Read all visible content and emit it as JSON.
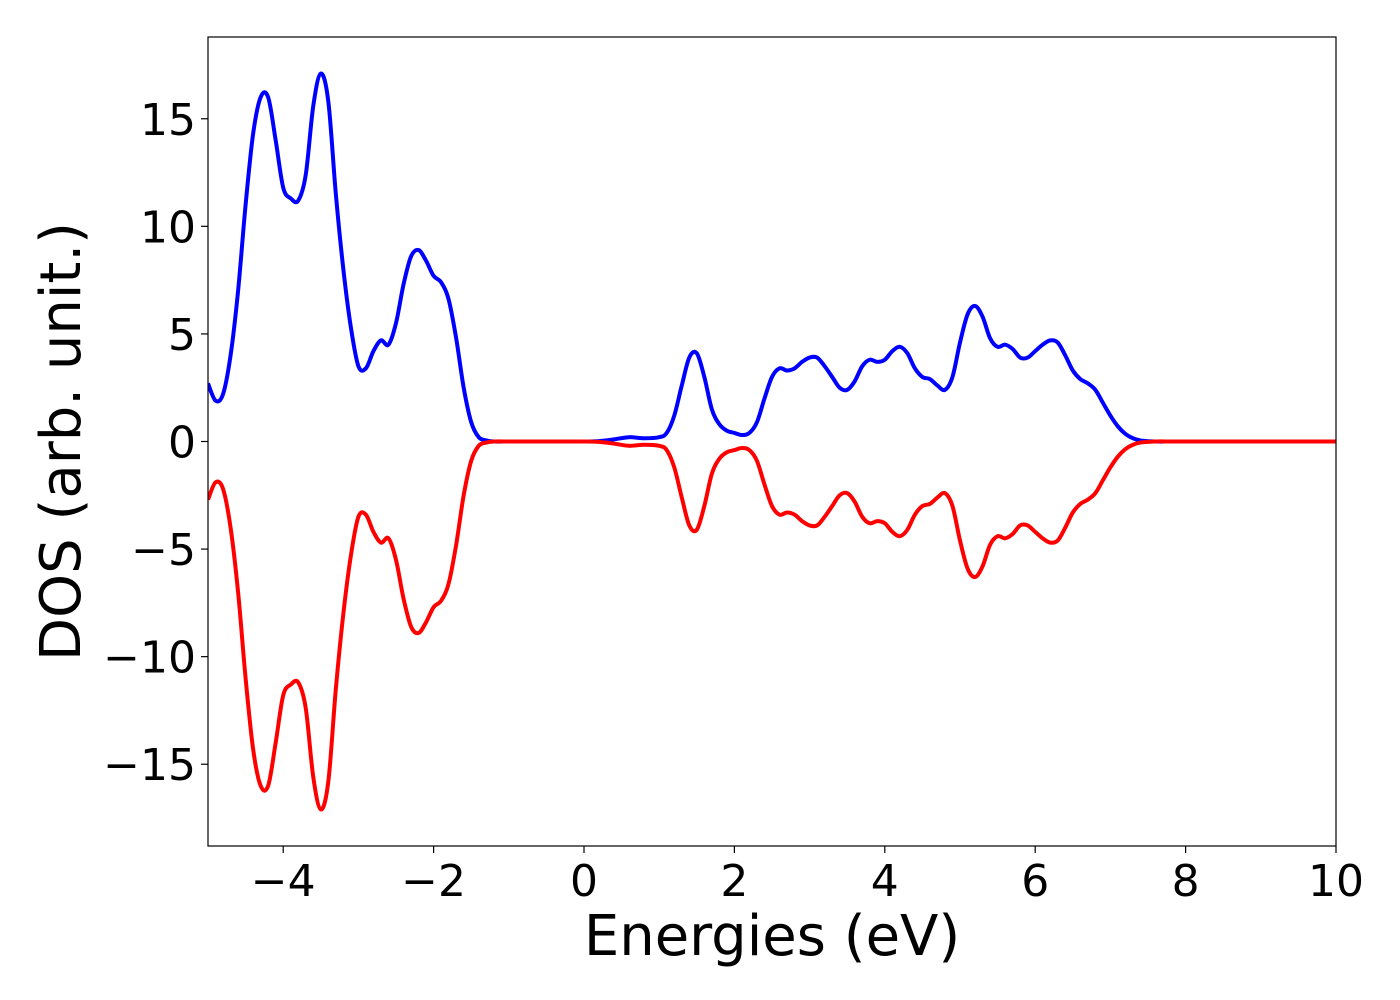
{
  "chart_data": {
    "type": "line",
    "title": "",
    "xlabel": "Energies (eV)",
    "ylabel": "DOS (arb. unit.)",
    "xlim": [
      -5,
      10
    ],
    "ylim": [
      -18.8,
      18.8
    ],
    "xticks": [
      -4,
      -2,
      0,
      2,
      4,
      6,
      8,
      10
    ],
    "xtick_labels": [
      "−4",
      "−2",
      "0",
      "2",
      "4",
      "6",
      "8",
      "10"
    ],
    "yticks": [
      15,
      10,
      5,
      0,
      -5,
      -10,
      -15
    ],
    "ytick_labels": [
      "15",
      "10",
      "5",
      "0",
      "−5",
      "−10",
      "−15"
    ],
    "grid": false,
    "legend": "none",
    "series": [
      {
        "color": "#0000ff",
        "points": [
          [
            -5.0,
            2.7
          ],
          [
            -4.9,
            1.9
          ],
          [
            -4.8,
            2.2
          ],
          [
            -4.7,
            4.0
          ],
          [
            -4.6,
            7.0
          ],
          [
            -4.5,
            11.0
          ],
          [
            -4.4,
            14.3
          ],
          [
            -4.3,
            16.0
          ],
          [
            -4.2,
            16.0
          ],
          [
            -4.1,
            14.0
          ],
          [
            -4.0,
            11.8
          ],
          [
            -3.9,
            11.3
          ],
          [
            -3.8,
            11.2
          ],
          [
            -3.7,
            12.4
          ],
          [
            -3.6,
            15.6
          ],
          [
            -3.5,
            17.1
          ],
          [
            -3.4,
            15.8
          ],
          [
            -3.3,
            11.5
          ],
          [
            -3.2,
            8.0
          ],
          [
            -3.1,
            5.3
          ],
          [
            -3.0,
            3.5
          ],
          [
            -2.9,
            3.4
          ],
          [
            -2.8,
            4.2
          ],
          [
            -2.7,
            4.7
          ],
          [
            -2.6,
            4.5
          ],
          [
            -2.5,
            5.5
          ],
          [
            -2.4,
            7.3
          ],
          [
            -2.3,
            8.6
          ],
          [
            -2.2,
            8.9
          ],
          [
            -2.1,
            8.4
          ],
          [
            -2.0,
            7.7
          ],
          [
            -1.9,
            7.4
          ],
          [
            -1.8,
            6.6
          ],
          [
            -1.7,
            4.8
          ],
          [
            -1.6,
            2.5
          ],
          [
            -1.5,
            0.9
          ],
          [
            -1.4,
            0.2
          ],
          [
            -1.3,
            0.05
          ],
          [
            -1.2,
            0.0
          ],
          [
            -1.0,
            0.0
          ],
          [
            -0.8,
            0.0
          ],
          [
            -0.6,
            0.0
          ],
          [
            -0.4,
            0.0
          ],
          [
            -0.2,
            0.0
          ],
          [
            0.0,
            0.0
          ],
          [
            0.2,
            0.02
          ],
          [
            0.4,
            0.1
          ],
          [
            0.6,
            0.2
          ],
          [
            0.8,
            0.15
          ],
          [
            1.0,
            0.2
          ],
          [
            1.1,
            0.4
          ],
          [
            1.2,
            1.2
          ],
          [
            1.3,
            2.6
          ],
          [
            1.4,
            3.9
          ],
          [
            1.5,
            4.1
          ],
          [
            1.6,
            3.0
          ],
          [
            1.7,
            1.5
          ],
          [
            1.8,
            0.8
          ],
          [
            1.9,
            0.5
          ],
          [
            2.0,
            0.4
          ],
          [
            2.1,
            0.3
          ],
          [
            2.2,
            0.4
          ],
          [
            2.3,
            0.9
          ],
          [
            2.4,
            2.0
          ],
          [
            2.5,
            3.0
          ],
          [
            2.6,
            3.4
          ],
          [
            2.7,
            3.3
          ],
          [
            2.8,
            3.4
          ],
          [
            2.9,
            3.7
          ],
          [
            3.0,
            3.9
          ],
          [
            3.1,
            3.9
          ],
          [
            3.2,
            3.5
          ],
          [
            3.3,
            3.0
          ],
          [
            3.4,
            2.5
          ],
          [
            3.5,
            2.4
          ],
          [
            3.6,
            2.8
          ],
          [
            3.7,
            3.5
          ],
          [
            3.8,
            3.8
          ],
          [
            3.9,
            3.7
          ],
          [
            4.0,
            3.8
          ],
          [
            4.1,
            4.2
          ],
          [
            4.2,
            4.4
          ],
          [
            4.3,
            4.1
          ],
          [
            4.4,
            3.4
          ],
          [
            4.5,
            3.0
          ],
          [
            4.6,
            2.9
          ],
          [
            4.7,
            2.6
          ],
          [
            4.8,
            2.4
          ],
          [
            4.9,
            3.0
          ],
          [
            5.0,
            4.6
          ],
          [
            5.1,
            5.9
          ],
          [
            5.2,
            6.3
          ],
          [
            5.3,
            5.8
          ],
          [
            5.4,
            4.8
          ],
          [
            5.5,
            4.4
          ],
          [
            5.6,
            4.5
          ],
          [
            5.7,
            4.3
          ],
          [
            5.8,
            3.9
          ],
          [
            5.9,
            3.9
          ],
          [
            6.0,
            4.2
          ],
          [
            6.1,
            4.5
          ],
          [
            6.2,
            4.7
          ],
          [
            6.3,
            4.6
          ],
          [
            6.4,
            4.0
          ],
          [
            6.5,
            3.3
          ],
          [
            6.6,
            2.9
          ],
          [
            6.7,
            2.7
          ],
          [
            6.8,
            2.4
          ],
          [
            6.9,
            1.8
          ],
          [
            7.0,
            1.2
          ],
          [
            7.1,
            0.7
          ],
          [
            7.2,
            0.35
          ],
          [
            7.3,
            0.15
          ],
          [
            7.4,
            0.05
          ],
          [
            7.6,
            0.0
          ],
          [
            7.8,
            0.0
          ],
          [
            8.0,
            0.0
          ],
          [
            8.5,
            0.0
          ],
          [
            9.0,
            0.0
          ],
          [
            9.5,
            0.0
          ],
          [
            10.0,
            0.0
          ]
        ]
      },
      {
        "color": "#ff0000",
        "points": [
          [
            -5.0,
            -2.7
          ],
          [
            -4.9,
            -1.9
          ],
          [
            -4.8,
            -2.2
          ],
          [
            -4.7,
            -4.0
          ],
          [
            -4.6,
            -7.0
          ],
          [
            -4.5,
            -11.0
          ],
          [
            -4.4,
            -14.3
          ],
          [
            -4.3,
            -16.0
          ],
          [
            -4.2,
            -16.0
          ],
          [
            -4.1,
            -14.0
          ],
          [
            -4.0,
            -11.8
          ],
          [
            -3.9,
            -11.3
          ],
          [
            -3.8,
            -11.2
          ],
          [
            -3.7,
            -12.4
          ],
          [
            -3.6,
            -15.6
          ],
          [
            -3.5,
            -17.1
          ],
          [
            -3.4,
            -15.8
          ],
          [
            -3.3,
            -11.5
          ],
          [
            -3.2,
            -8.0
          ],
          [
            -3.1,
            -5.3
          ],
          [
            -3.0,
            -3.5
          ],
          [
            -2.9,
            -3.4
          ],
          [
            -2.8,
            -4.2
          ],
          [
            -2.7,
            -4.7
          ],
          [
            -2.6,
            -4.5
          ],
          [
            -2.5,
            -5.5
          ],
          [
            -2.4,
            -7.3
          ],
          [
            -2.3,
            -8.6
          ],
          [
            -2.2,
            -8.9
          ],
          [
            -2.1,
            -8.4
          ],
          [
            -2.0,
            -7.7
          ],
          [
            -1.9,
            -7.4
          ],
          [
            -1.8,
            -6.6
          ],
          [
            -1.7,
            -4.8
          ],
          [
            -1.6,
            -2.5
          ],
          [
            -1.5,
            -0.9
          ],
          [
            -1.4,
            -0.2
          ],
          [
            -1.3,
            -0.05
          ],
          [
            -1.2,
            0.0
          ],
          [
            -1.0,
            0.0
          ],
          [
            -0.8,
            0.0
          ],
          [
            -0.6,
            0.0
          ],
          [
            -0.4,
            0.0
          ],
          [
            -0.2,
            0.0
          ],
          [
            0.0,
            0.0
          ],
          [
            0.2,
            -0.02
          ],
          [
            0.4,
            -0.1
          ],
          [
            0.6,
            -0.2
          ],
          [
            0.8,
            -0.15
          ],
          [
            1.0,
            -0.2
          ],
          [
            1.1,
            -0.4
          ],
          [
            1.2,
            -1.2
          ],
          [
            1.3,
            -2.6
          ],
          [
            1.4,
            -3.9
          ],
          [
            1.5,
            -4.1
          ],
          [
            1.6,
            -3.0
          ],
          [
            1.7,
            -1.5
          ],
          [
            1.8,
            -0.8
          ],
          [
            1.9,
            -0.5
          ],
          [
            2.0,
            -0.4
          ],
          [
            2.1,
            -0.3
          ],
          [
            2.2,
            -0.4
          ],
          [
            2.3,
            -0.9
          ],
          [
            2.4,
            -2.0
          ],
          [
            2.5,
            -3.0
          ],
          [
            2.6,
            -3.4
          ],
          [
            2.7,
            -3.3
          ],
          [
            2.8,
            -3.4
          ],
          [
            2.9,
            -3.7
          ],
          [
            3.0,
            -3.9
          ],
          [
            3.1,
            -3.9
          ],
          [
            3.2,
            -3.5
          ],
          [
            3.3,
            -3.0
          ],
          [
            3.4,
            -2.5
          ],
          [
            3.5,
            -2.4
          ],
          [
            3.6,
            -2.8
          ],
          [
            3.7,
            -3.5
          ],
          [
            3.8,
            -3.8
          ],
          [
            3.9,
            -3.7
          ],
          [
            4.0,
            -3.8
          ],
          [
            4.1,
            -4.2
          ],
          [
            4.2,
            -4.4
          ],
          [
            4.3,
            -4.1
          ],
          [
            4.4,
            -3.4
          ],
          [
            4.5,
            -3.0
          ],
          [
            4.6,
            -2.9
          ],
          [
            4.7,
            -2.6
          ],
          [
            4.8,
            -2.4
          ],
          [
            4.9,
            -3.0
          ],
          [
            5.0,
            -4.6
          ],
          [
            5.1,
            -5.9
          ],
          [
            5.2,
            -6.3
          ],
          [
            5.3,
            -5.8
          ],
          [
            5.4,
            -4.8
          ],
          [
            5.5,
            -4.4
          ],
          [
            5.6,
            -4.5
          ],
          [
            5.7,
            -4.3
          ],
          [
            5.8,
            -3.9
          ],
          [
            5.9,
            -3.9
          ],
          [
            6.0,
            -4.2
          ],
          [
            6.1,
            -4.5
          ],
          [
            6.2,
            -4.7
          ],
          [
            6.3,
            -4.6
          ],
          [
            6.4,
            -4.0
          ],
          [
            6.5,
            -3.3
          ],
          [
            6.6,
            -2.9
          ],
          [
            6.7,
            -2.7
          ],
          [
            6.8,
            -2.4
          ],
          [
            6.9,
            -1.8
          ],
          [
            7.0,
            -1.2
          ],
          [
            7.1,
            -0.7
          ],
          [
            7.2,
            -0.35
          ],
          [
            7.3,
            -0.15
          ],
          [
            7.4,
            -0.05
          ],
          [
            7.6,
            0.0
          ],
          [
            7.8,
            0.0
          ],
          [
            8.0,
            0.0
          ],
          [
            8.5,
            0.0
          ],
          [
            9.0,
            0.0
          ],
          [
            9.5,
            0.0
          ],
          [
            10.0,
            0.0
          ]
        ]
      }
    ]
  }
}
